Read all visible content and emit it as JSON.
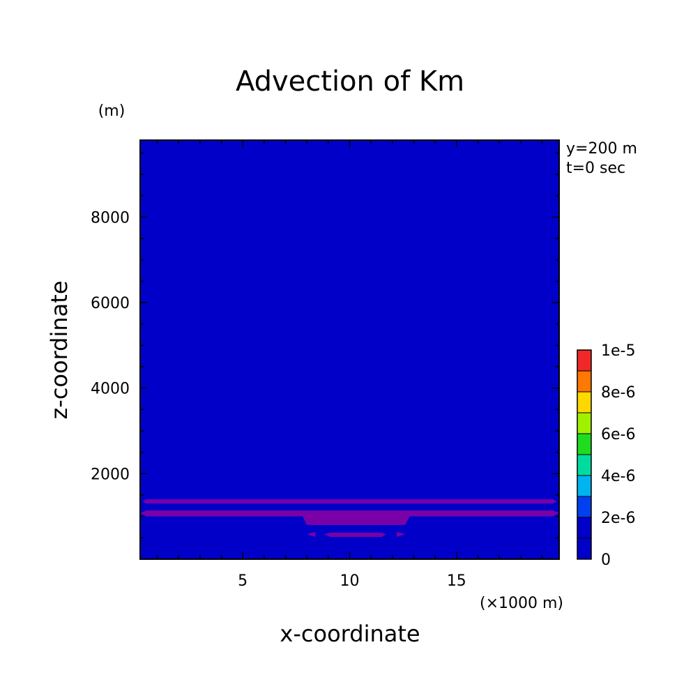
{
  "chart_data": {
    "type": "heatmap",
    "title": "Advection of Km",
    "xlabel": "x-coordinate",
    "ylabel": "z-coordinate",
    "x_unit": "(×1000 m)",
    "y_unit": "(m)",
    "annotations": [
      "y=200 m",
      "t=0 sec"
    ],
    "xlim": [
      0.2,
      19.8
    ],
    "ylim": [
      0,
      9800
    ],
    "xticks": [
      5,
      10,
      15
    ],
    "yticks": [
      2000,
      4000,
      6000,
      8000
    ],
    "background_level_color": "#0000c8",
    "regions": [
      {
        "name": "upper band",
        "value_range": [
          0,
          1e-06
        ],
        "color": "#7a00a8",
        "x": [
          0.5,
          19.5
        ],
        "z": [
          1300,
          1400
        ]
      },
      {
        "name": "middle band",
        "value_range": [
          0,
          1e-06
        ],
        "color": "#7a00a8",
        "outline": [
          [
            0.2,
            1080
          ],
          [
            0.5,
            1000
          ],
          [
            7.8,
            1000
          ],
          [
            8.0,
            800
          ],
          [
            12.6,
            800
          ],
          [
            12.8,
            1000
          ],
          [
            19.5,
            1000
          ],
          [
            19.8,
            1080
          ],
          [
            19.5,
            1140
          ],
          [
            0.5,
            1140
          ]
        ]
      },
      {
        "name": "lower lobe",
        "value_range": [
          0,
          1e-06
        ],
        "color": "#7a00a8",
        "outline": [
          [
            8.8,
            580
          ],
          [
            9.1,
            520
          ],
          [
            11.5,
            520
          ],
          [
            11.7,
            580
          ],
          [
            11.5,
            620
          ],
          [
            9.1,
            620
          ]
        ]
      },
      {
        "name": "left marker",
        "value_range": [
          0,
          1e-06
        ],
        "color": "#7a00a8",
        "outline": [
          [
            8.0,
            580
          ],
          [
            8.4,
            520
          ],
          [
            8.4,
            640
          ]
        ]
      },
      {
        "name": "right marker",
        "value_range": [
          0,
          1e-06
        ],
        "color": "#7a00a8",
        "outline": [
          [
            12.6,
            580
          ],
          [
            12.2,
            520
          ],
          [
            12.2,
            640
          ]
        ]
      }
    ],
    "colorbar": {
      "labels": [
        "0",
        "2e-6",
        "4e-6",
        "6e-6",
        "8e-6",
        "1e-5"
      ],
      "colors": [
        "#0000c8",
        "#0040f0",
        "#00b4f0",
        "#00dca0",
        "#20dc20",
        "#a0f000",
        "#ffd800",
        "#ff7800",
        "#f02828"
      ]
    }
  }
}
